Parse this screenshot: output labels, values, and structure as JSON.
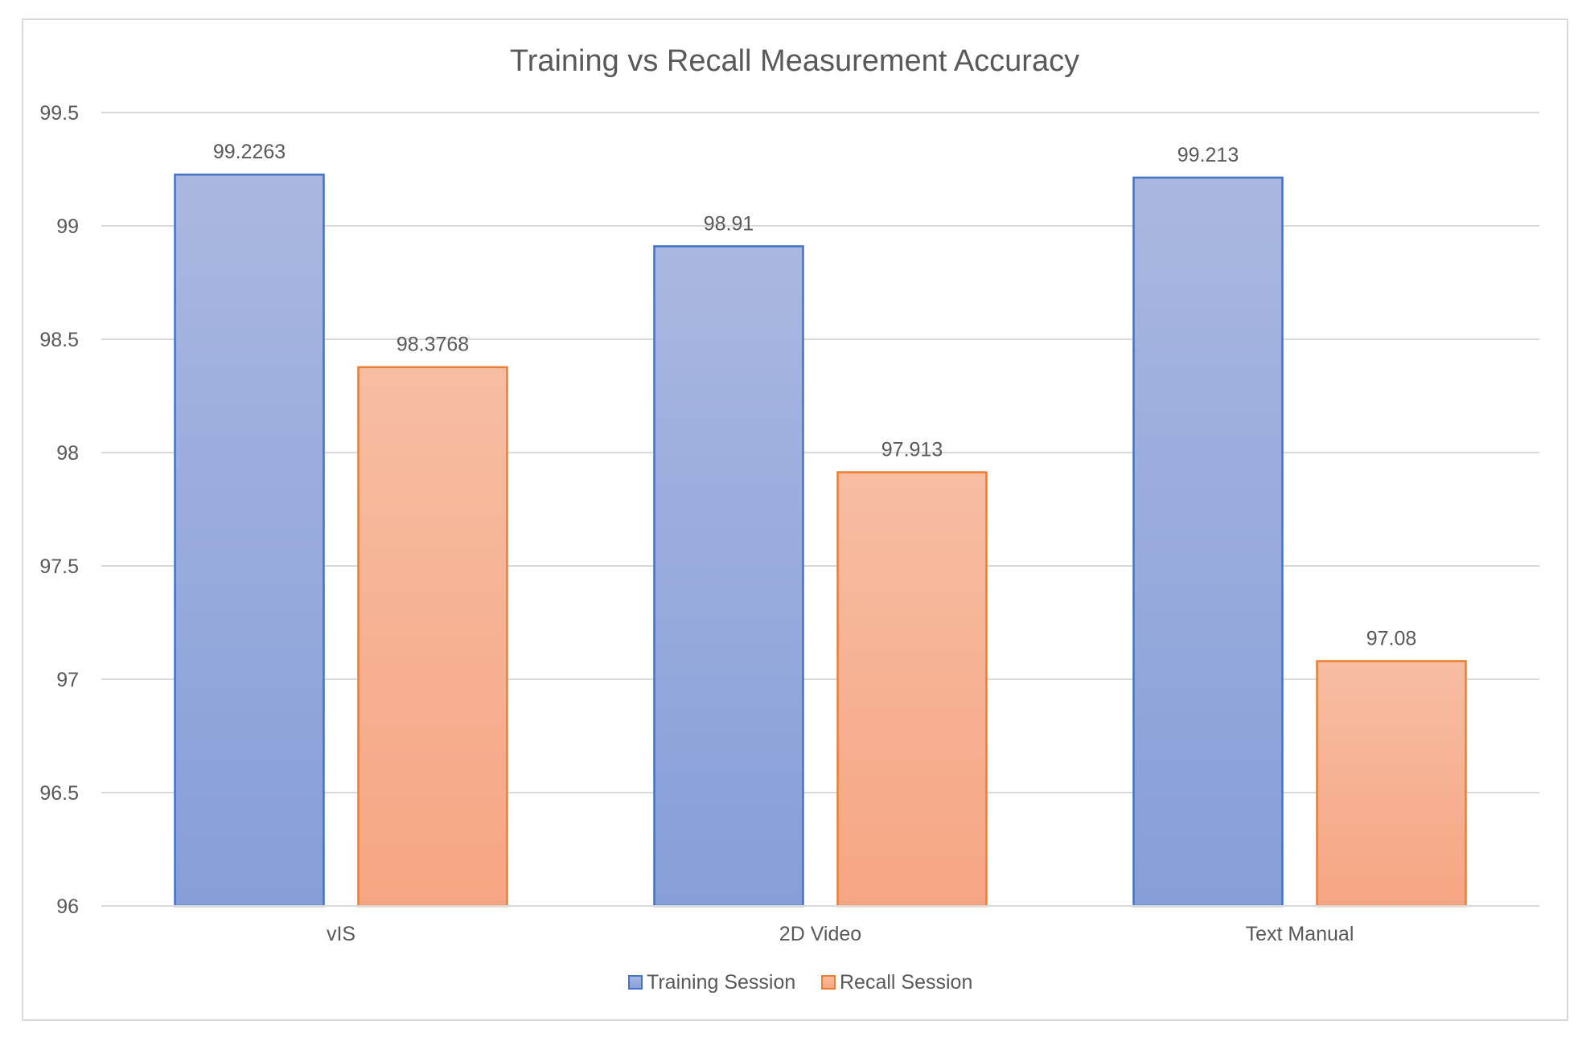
{
  "chart_data": {
    "type": "bar",
    "title": "Training vs Recall Measurement Accuracy",
    "xlabel": "",
    "ylabel": "",
    "categories": [
      "vIS",
      "2D Video",
      "Text Manual"
    ],
    "series": [
      {
        "name": "Training Session",
        "values": [
          99.2263,
          98.91,
          99.213
        ],
        "labels": [
          "99.2263",
          "98.91",
          "99.213"
        ],
        "color": "#8fa5d9",
        "border_color": "#4472c4"
      },
      {
        "name": "Recall Session",
        "values": [
          98.3768,
          97.913,
          97.08
        ],
        "labels": [
          "98.3768",
          "97.913",
          "97.08"
        ],
        "color": "#f6ab8a",
        "border_color": "#ed7d31"
      }
    ],
    "ylim": [
      96,
      99.5
    ],
    "yticks": [
      96,
      96.5,
      97,
      97.5,
      98,
      98.5,
      99,
      99.5
    ],
    "ytick_labels": [
      "96",
      "96.5",
      "97",
      "97.5",
      "98",
      "98.5",
      "99",
      "99.5"
    ],
    "grid": true,
    "legend_position": "bottom"
  }
}
